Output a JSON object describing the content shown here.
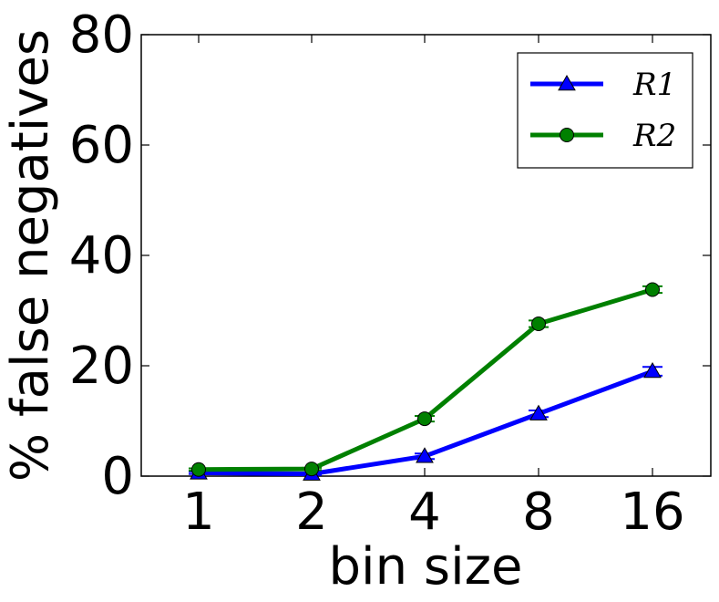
{
  "chart_data": {
    "type": "line",
    "xlabel": "bin size",
    "ylabel": "% false negatives",
    "x_categories": [
      "1",
      "2",
      "4",
      "8",
      "16"
    ],
    "ylim": [
      0,
      80
    ],
    "yticks": [
      0,
      20,
      40,
      60,
      80
    ],
    "grid": false,
    "legend_position": "top-right",
    "series": [
      {
        "name": "R1",
        "marker": "triangle",
        "color": "#0000ff",
        "values": [
          0.6,
          0.4,
          3.6,
          11.3,
          19.0
        ],
        "errors": [
          0.2,
          0.2,
          0.5,
          0.6,
          0.8
        ]
      },
      {
        "name": "R2",
        "marker": "circle",
        "color": "#008000",
        "values": [
          1.2,
          1.3,
          10.4,
          27.6,
          33.8
        ],
        "errors": [
          0.2,
          0.2,
          0.5,
          0.6,
          0.6
        ]
      }
    ]
  }
}
